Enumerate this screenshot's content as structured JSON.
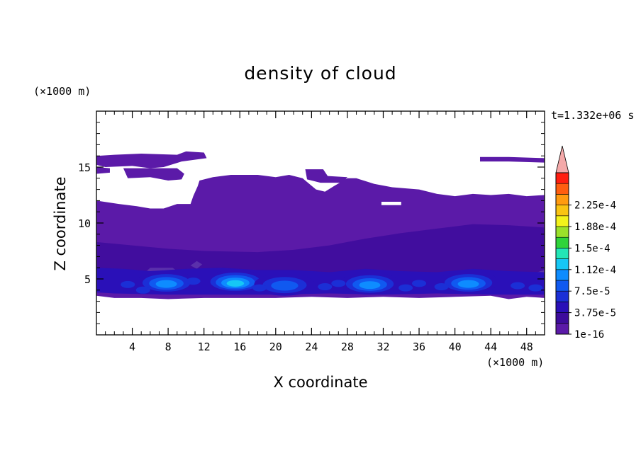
{
  "chart_data": {
    "type": "heatmap",
    "title": "density of cloud",
    "xlabel": "X coordinate",
    "ylabel": "Z coordinate",
    "x_unit": "(×1000 m)",
    "y_unit": "(×1000 m)",
    "time_label": "t=1.332e+06 s",
    "xlim": [
      0,
      50
    ],
    "ylim": [
      0,
      20
    ],
    "x_ticks": [
      4,
      8,
      12,
      16,
      20,
      24,
      28,
      32,
      36,
      40,
      44,
      48
    ],
    "y_ticks": [
      5,
      10,
      15
    ],
    "grid": false,
    "colorbar": {
      "tick_labels": [
        "1e-16",
        "3.75e-5",
        "7.5e-5",
        "1.12e-4",
        "1.5e-4",
        "1.88e-4",
        "2.25e-4"
      ],
      "levels": [
        1e-16,
        1.875e-05,
        3.75e-05,
        5.625e-05,
        7.5e-05,
        9.375e-05,
        0.0001125,
        0.00013125,
        0.00015,
        0.00016875,
        0.0001875,
        0.00020625,
        0.000225,
        0.00024375,
        0.0002625
      ],
      "colors": [
        "#5b1aa8",
        "#3d0c9c",
        "#2a10b8",
        "#1b2fd6",
        "#1059f0",
        "#0e8cff",
        "#16c7f5",
        "#23e6b6",
        "#2fd43a",
        "#9be12a",
        "#f3f21b",
        "#f9c413",
        "#ff9b10",
        "#ff5e10",
        "#ff1e10"
      ],
      "extend_color": "#f4a9a9",
      "placement": "right"
    },
    "cloud_layers": [
      {
        "level": 1e-16,
        "z_range": [
          3.3,
          16.5
        ],
        "description_color": "#5b1aa8"
      },
      {
        "level": 3.75e-05,
        "z_range": [
          3.5,
          8.5
        ]
      },
      {
        "level": 7.5e-05,
        "z_range": [
          3.8,
          6.0
        ]
      }
    ],
    "cells": [
      {
        "x": 7.8,
        "z": 4.7,
        "peak": 0.0001
      },
      {
        "x": 15.5,
        "z": 4.8,
        "peak": 0.00013
      },
      {
        "x": 21.0,
        "z": 4.5,
        "peak": 7.5e-05
      },
      {
        "x": 30.5,
        "z": 4.6,
        "peak": 9.5e-05
      },
      {
        "x": 41.5,
        "z": 4.7,
        "peak": 0.0001
      }
    ]
  }
}
